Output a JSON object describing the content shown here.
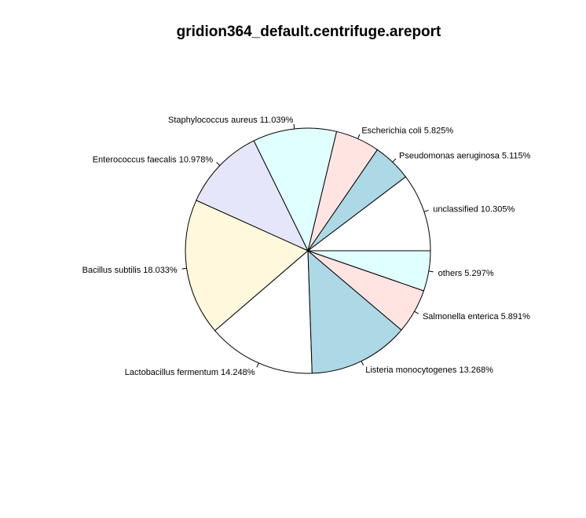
{
  "chart_data": {
    "type": "pie",
    "title": "gridion364_default.centrifuge.areport",
    "start_angle_deg": 0,
    "direction": "counterclockwise",
    "slices": [
      {
        "label": "unclassified 10.305%",
        "value": 10.305,
        "color": "#ffffff"
      },
      {
        "label": "Pseudomonas aeruginosa 5.115%",
        "value": 5.115,
        "color": "#add8e6"
      },
      {
        "label": "Escherichia coli 5.825%",
        "value": 5.825,
        "color": "#ffe4e1"
      },
      {
        "label": "Staphylococcus aureus 11.039%",
        "value": 11.039,
        "color": "#e0ffff"
      },
      {
        "label": "Enterococcus faecalis 10.978%",
        "value": 10.978,
        "color": "#e6e6fa"
      },
      {
        "label": "Bacillus subtilis 18.033%",
        "value": 18.033,
        "color": "#fff8dc"
      },
      {
        "label": "Lactobacillus fermentum 14.248%",
        "value": 14.248,
        "color": "#ffffff"
      },
      {
        "label": "Listeria monocytogenes 13.268%",
        "value": 13.268,
        "color": "#add8e6"
      },
      {
        "label": "Salmonella enterica 5.891%",
        "value": 5.891,
        "color": "#ffe4e1"
      },
      {
        "label": "others 5.297%",
        "value": 5.297,
        "color": "#e0ffff"
      }
    ]
  }
}
